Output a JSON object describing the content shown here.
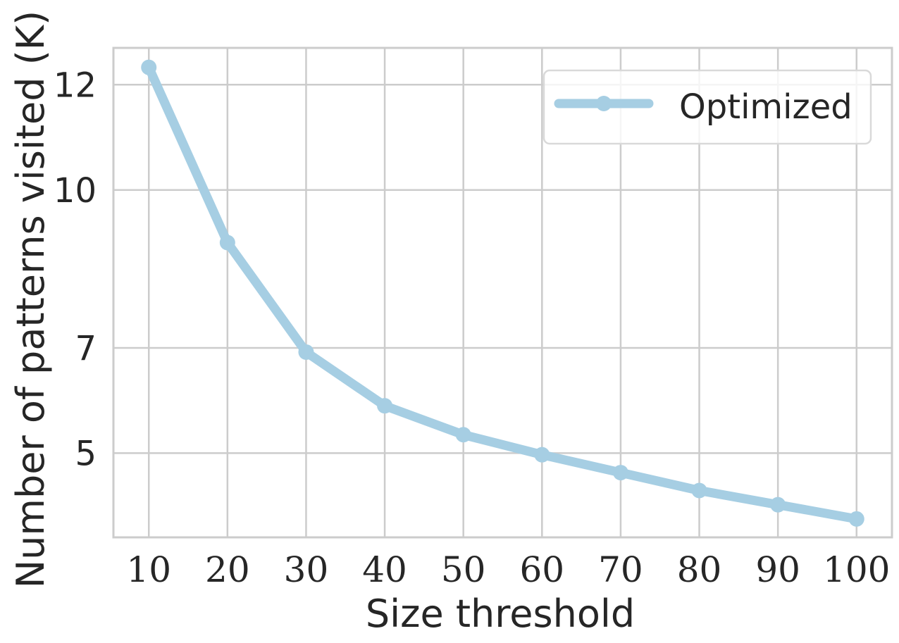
{
  "chart_data": {
    "type": "line",
    "title": "",
    "xlabel": "Size threshold",
    "ylabel": "Number of patterns visited (K)",
    "x": [
      10,
      20,
      30,
      40,
      50,
      60,
      70,
      80,
      90,
      100
    ],
    "x_tick_labels": [
      "10",
      "20",
      "30",
      "40",
      "50",
      "60",
      "70",
      "80",
      "90",
      "100"
    ],
    "y_ticks": [
      5,
      7,
      10,
      12
    ],
    "y_tick_labels": [
      "5",
      "7",
      "10",
      "12"
    ],
    "ylim": [
      3.4,
      12.7
    ],
    "xlim": [
      5.5,
      104.5
    ],
    "grid": true,
    "legend_position": "top-right",
    "series": [
      {
        "name": "Optimized",
        "color": "#a6cee3",
        "marker": "circle",
        "values": [
          12.33,
          9.0,
          6.92,
          5.9,
          5.35,
          4.97,
          4.63,
          4.29,
          4.02,
          3.75
        ]
      }
    ]
  }
}
